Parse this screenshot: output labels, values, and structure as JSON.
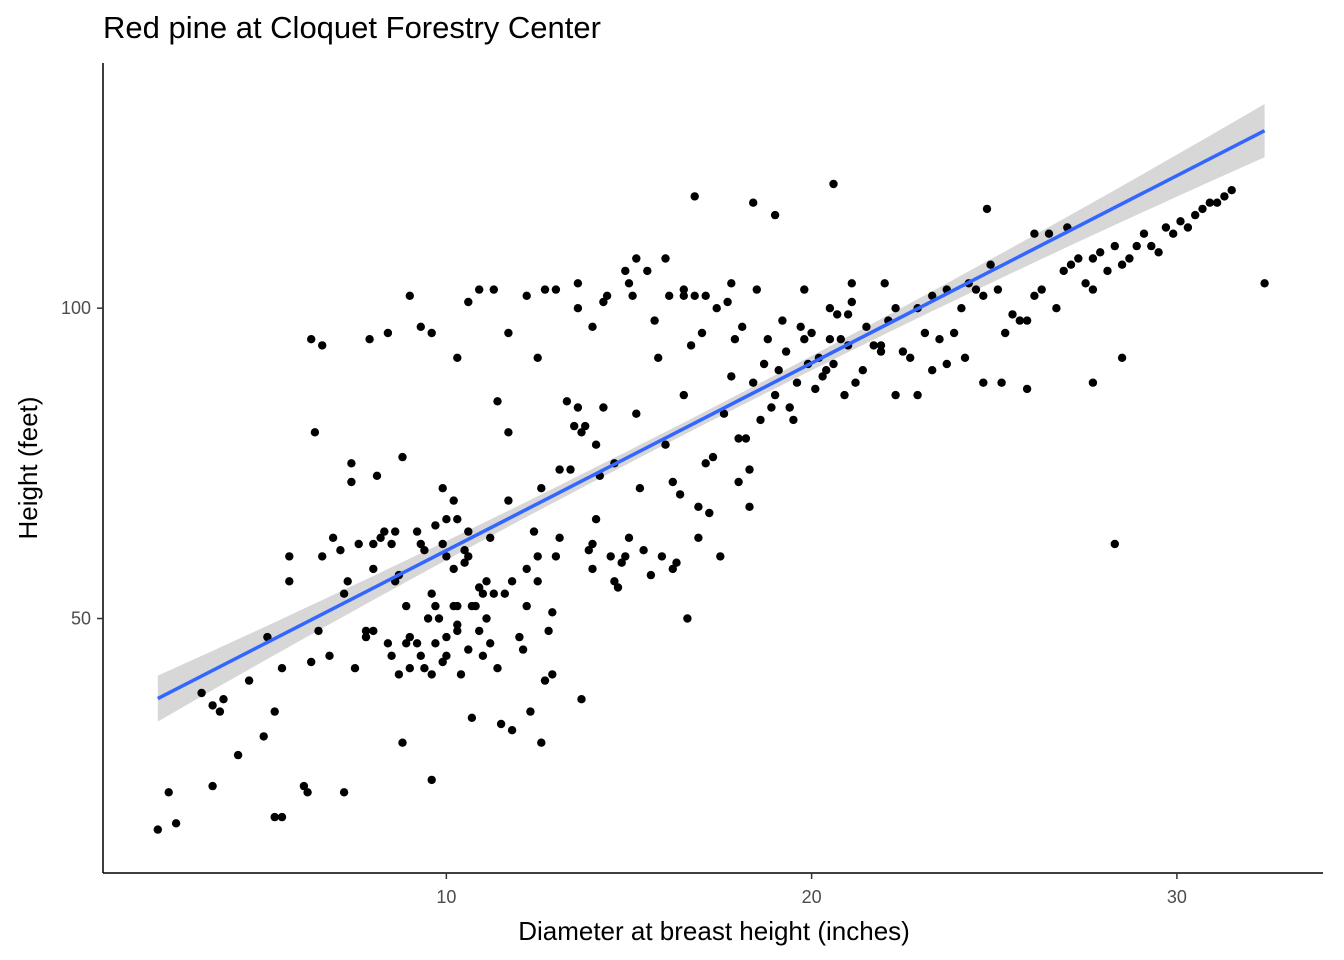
{
  "chart_data": {
    "type": "scatter",
    "title": "Red pine at Cloquet Forestry Center",
    "xlabel": "Diameter at breast height (inches)",
    "ylabel": "Height (feet)",
    "xlim": [
      0.6,
      34.0
    ],
    "ylim": [
      9.0,
      139.5
    ],
    "xticks": [
      10,
      20,
      30
    ],
    "yticks": [
      50,
      100
    ],
    "grid": false,
    "legend": "none",
    "point_color": "#000000",
    "fit": {
      "type": "linear",
      "color": "#3366FF",
      "ci_color": "#D3D3D3",
      "x_range": [
        2.1,
        32.4
      ],
      "y_start": 37.1,
      "y_end": 128.6,
      "ci_halfwidth_start": 3.7,
      "ci_halfwidth_mid": 1.0,
      "ci_halfwidth_end": 4.3
    },
    "points": [
      [
        2.1,
        16
      ],
      [
        2.4,
        22
      ],
      [
        2.6,
        17
      ],
      [
        3.3,
        38
      ],
      [
        3.6,
        23
      ],
      [
        3.6,
        36
      ],
      [
        3.8,
        35
      ],
      [
        3.9,
        37
      ],
      [
        4.3,
        28
      ],
      [
        4.6,
        40
      ],
      [
        5.0,
        31
      ],
      [
        5.1,
        47
      ],
      [
        5.3,
        18
      ],
      [
        5.3,
        35
      ],
      [
        5.5,
        18
      ],
      [
        5.5,
        42
      ],
      [
        5.7,
        60
      ],
      [
        5.7,
        56
      ],
      [
        6.1,
        23
      ],
      [
        6.2,
        22
      ],
      [
        6.3,
        43
      ],
      [
        6.4,
        80
      ],
      [
        6.5,
        48
      ],
      [
        6.8,
        44
      ],
      [
        7.2,
        22
      ],
      [
        7.2,
        54
      ],
      [
        7.3,
        56
      ],
      [
        7.5,
        42
      ],
      [
        7.6,
        62
      ],
      [
        7.8,
        48
      ],
      [
        7.8,
        47
      ],
      [
        7.9,
        95
      ],
      [
        8.0,
        48
      ],
      [
        8.0,
        58
      ],
      [
        8.0,
        62
      ],
      [
        8.2,
        63
      ],
      [
        8.3,
        64
      ],
      [
        8.4,
        46
      ],
      [
        8.5,
        62
      ],
      [
        8.5,
        44
      ],
      [
        8.6,
        64
      ],
      [
        8.6,
        56
      ],
      [
        8.7,
        41
      ],
      [
        8.7,
        57
      ],
      [
        8.8,
        30
      ],
      [
        8.9,
        46
      ],
      [
        8.9,
        52
      ],
      [
        9.0,
        47
      ],
      [
        9.0,
        42
      ],
      [
        9.2,
        64
      ],
      [
        9.2,
        46
      ],
      [
        9.3,
        62
      ],
      [
        9.3,
        44
      ],
      [
        9.4,
        42
      ],
      [
        9.4,
        61
      ],
      [
        9.5,
        50
      ],
      [
        9.6,
        24
      ],
      [
        9.6,
        54
      ],
      [
        9.6,
        41
      ],
      [
        9.6,
        96
      ],
      [
        9.7,
        46
      ],
      [
        9.7,
        65
      ],
      [
        9.7,
        52
      ],
      [
        9.8,
        50
      ],
      [
        9.9,
        62
      ],
      [
        9.9,
        43
      ],
      [
        10.0,
        47
      ],
      [
        10.0,
        44
      ],
      [
        10.0,
        66
      ],
      [
        10.0,
        60
      ],
      [
        10.2,
        58
      ],
      [
        10.2,
        52
      ],
      [
        10.3,
        52
      ],
      [
        10.3,
        49
      ],
      [
        10.3,
        48
      ],
      [
        10.3,
        66
      ],
      [
        10.4,
        41
      ],
      [
        10.5,
        59
      ],
      [
        10.5,
        61
      ],
      [
        10.6,
        60
      ],
      [
        10.6,
        45
      ],
      [
        10.6,
        64
      ],
      [
        10.7,
        52
      ],
      [
        10.7,
        34
      ],
      [
        10.8,
        52
      ],
      [
        10.9,
        48
      ],
      [
        10.9,
        55
      ],
      [
        11.0,
        44
      ],
      [
        11.0,
        54
      ],
      [
        11.1,
        50
      ],
      [
        11.1,
        56
      ],
      [
        11.2,
        46
      ],
      [
        11.2,
        63
      ],
      [
        11.3,
        54
      ],
      [
        11.4,
        42
      ],
      [
        11.5,
        33
      ],
      [
        11.6,
        54
      ],
      [
        11.7,
        69
      ],
      [
        11.8,
        32
      ],
      [
        11.8,
        56
      ],
      [
        12.0,
        47
      ],
      [
        12.1,
        45
      ],
      [
        12.2,
        58
      ],
      [
        12.2,
        52
      ],
      [
        12.3,
        35
      ],
      [
        12.4,
        64
      ],
      [
        12.5,
        56
      ],
      [
        12.5,
        60
      ],
      [
        12.5,
        92
      ],
      [
        12.6,
        30
      ],
      [
        12.6,
        71
      ],
      [
        12.7,
        40
      ],
      [
        12.8,
        48
      ],
      [
        12.9,
        41
      ],
      [
        12.9,
        51
      ],
      [
        13.0,
        60
      ],
      [
        13.1,
        74
      ],
      [
        13.1,
        63
      ],
      [
        13.3,
        85
      ],
      [
        13.4,
        74
      ],
      [
        13.5,
        81
      ],
      [
        13.6,
        84
      ],
      [
        13.7,
        37
      ],
      [
        13.7,
        80
      ],
      [
        13.8,
        81
      ],
      [
        13.9,
        61
      ],
      [
        14.0,
        62
      ],
      [
        14.0,
        58
      ],
      [
        14.1,
        66
      ],
      [
        14.1,
        78
      ],
      [
        14.2,
        73
      ],
      [
        14.3,
        84
      ],
      [
        14.3,
        101
      ],
      [
        14.5,
        60
      ],
      [
        14.6,
        75
      ],
      [
        14.6,
        56
      ],
      [
        14.7,
        55
      ],
      [
        14.8,
        59
      ],
      [
        14.9,
        60
      ],
      [
        15.0,
        63
      ],
      [
        15.1,
        102
      ],
      [
        15.2,
        83
      ],
      [
        15.3,
        71
      ],
      [
        15.4,
        61
      ],
      [
        15.6,
        57
      ],
      [
        15.7,
        98
      ],
      [
        15.8,
        92
      ],
      [
        15.9,
        60
      ],
      [
        16.0,
        78
      ],
      [
        16.1,
        102
      ],
      [
        16.2,
        58
      ],
      [
        16.2,
        72
      ],
      [
        16.3,
        59
      ],
      [
        16.4,
        70
      ],
      [
        16.5,
        103
      ],
      [
        16.5,
        86
      ],
      [
        16.6,
        50
      ],
      [
        16.7,
        94
      ],
      [
        16.8,
        102
      ],
      [
        16.9,
        63
      ],
      [
        16.9,
        68
      ],
      [
        17.0,
        96
      ],
      [
        17.1,
        75
      ],
      [
        17.2,
        67
      ],
      [
        17.3,
        76
      ],
      [
        17.4,
        100
      ],
      [
        17.5,
        60
      ],
      [
        17.6,
        83
      ],
      [
        17.7,
        101
      ],
      [
        17.8,
        89
      ],
      [
        17.9,
        95
      ],
      [
        18.0,
        72
      ],
      [
        18.1,
        97
      ],
      [
        18.2,
        79
      ],
      [
        18.3,
        68
      ],
      [
        18.4,
        88
      ],
      [
        18.5,
        103
      ],
      [
        18.6,
        82
      ],
      [
        18.7,
        91
      ],
      [
        18.8,
        95
      ],
      [
        18.9,
        84
      ],
      [
        19.0,
        86
      ],
      [
        19.1,
        90
      ],
      [
        19.2,
        98
      ],
      [
        19.3,
        93
      ],
      [
        19.4,
        84
      ],
      [
        19.5,
        82
      ],
      [
        19.6,
        88
      ],
      [
        19.7,
        97
      ],
      [
        19.8,
        103
      ],
      [
        19.9,
        91
      ],
      [
        20.0,
        96
      ],
      [
        20.1,
        87
      ],
      [
        20.2,
        92
      ],
      [
        20.3,
        89
      ],
      [
        20.4,
        90
      ],
      [
        20.5,
        95
      ],
      [
        20.6,
        91
      ],
      [
        20.7,
        99
      ],
      [
        20.8,
        95
      ],
      [
        20.9,
        86
      ],
      [
        21.0,
        94
      ],
      [
        21.1,
        101
      ],
      [
        21.2,
        88
      ],
      [
        21.4,
        90
      ],
      [
        21.5,
        97
      ],
      [
        21.7,
        94
      ],
      [
        21.9,
        94
      ],
      [
        22.1,
        98
      ],
      [
        22.3,
        100
      ],
      [
        22.5,
        93
      ],
      [
        22.7,
        92
      ],
      [
        22.9,
        100
      ],
      [
        23.1,
        96
      ],
      [
        23.3,
        102
      ],
      [
        23.5,
        95
      ],
      [
        23.7,
        103
      ],
      [
        23.9,
        96
      ],
      [
        24.1,
        100
      ],
      [
        24.3,
        104
      ],
      [
        24.5,
        103
      ],
      [
        24.7,
        102
      ],
      [
        24.9,
        107
      ],
      [
        25.1,
        103
      ],
      [
        25.3,
        96
      ],
      [
        25.5,
        99
      ],
      [
        25.7,
        98
      ],
      [
        25.9,
        98
      ],
      [
        26.1,
        102
      ],
      [
        26.3,
        103
      ],
      [
        26.5,
        112
      ],
      [
        26.7,
        100
      ],
      [
        26.9,
        106
      ],
      [
        27.1,
        107
      ],
      [
        27.3,
        108
      ],
      [
        27.5,
        104
      ],
      [
        27.7,
        103
      ],
      [
        27.9,
        109
      ],
      [
        28.1,
        106
      ],
      [
        28.3,
        110
      ],
      [
        28.5,
        107
      ],
      [
        28.7,
        108
      ],
      [
        28.9,
        110
      ],
      [
        29.1,
        112
      ],
      [
        29.3,
        110
      ],
      [
        29.5,
        109
      ],
      [
        29.7,
        113
      ],
      [
        29.9,
        112
      ],
      [
        30.1,
        114
      ],
      [
        30.3,
        113
      ],
      [
        30.5,
        115
      ],
      [
        30.7,
        116
      ],
      [
        30.9,
        117
      ],
      [
        31.1,
        117
      ],
      [
        31.3,
        118
      ],
      [
        31.5,
        119
      ],
      [
        28.3,
        62
      ],
      [
        32.4,
        104
      ],
      [
        27.7,
        108
      ],
      [
        27.0,
        113
      ],
      [
        26.1,
        112
      ],
      [
        24.8,
        116
      ],
      [
        22.0,
        104
      ],
      [
        21.1,
        104
      ],
      [
        20.6,
        120
      ],
      [
        19.0,
        115
      ],
      [
        18.4,
        117
      ],
      [
        16.8,
        118
      ],
      [
        15.2,
        108
      ],
      [
        14.9,
        106
      ],
      [
        13.6,
        104
      ],
      [
        12.7,
        103
      ],
      [
        11.3,
        103
      ],
      [
        10.9,
        103
      ],
      [
        10.6,
        101
      ],
      [
        10.3,
        92
      ],
      [
        9.3,
        97
      ],
      [
        9.9,
        71
      ],
      [
        10.2,
        69
      ],
      [
        8.8,
        76
      ],
      [
        8.1,
        73
      ],
      [
        7.4,
        72
      ],
      [
        7.1,
        61
      ],
      [
        6.9,
        63
      ],
      [
        6.6,
        60
      ],
      [
        6.3,
        95
      ],
      [
        6.6,
        94
      ],
      [
        7.4,
        75
      ],
      [
        8.4,
        96
      ],
      [
        9.0,
        102
      ],
      [
        11.4,
        85
      ],
      [
        11.7,
        80
      ],
      [
        11.7,
        96
      ],
      [
        12.2,
        102
      ],
      [
        13.0,
        103
      ],
      [
        13.6,
        100
      ],
      [
        14.0,
        97
      ],
      [
        14.4,
        102
      ],
      [
        15.0,
        104
      ],
      [
        15.5,
        106
      ],
      [
        16.0,
        108
      ],
      [
        16.5,
        102
      ],
      [
        17.1,
        102
      ],
      [
        17.8,
        104
      ],
      [
        18.0,
        79
      ],
      [
        18.3,
        74
      ],
      [
        19.8,
        95
      ],
      [
        20.5,
        100
      ],
      [
        21.0,
        99
      ],
      [
        21.9,
        93
      ],
      [
        22.3,
        86
      ],
      [
        22.9,
        86
      ],
      [
        23.3,
        90
      ],
      [
        23.7,
        91
      ],
      [
        24.2,
        92
      ],
      [
        24.7,
        88
      ],
      [
        25.2,
        88
      ],
      [
        25.9,
        87
      ],
      [
        27.7,
        88
      ],
      [
        28.5,
        92
      ]
    ]
  }
}
